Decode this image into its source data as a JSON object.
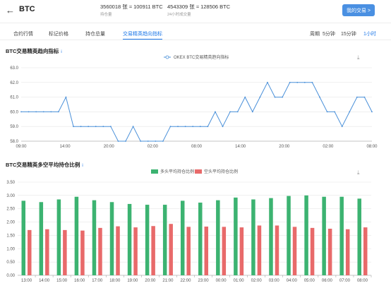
{
  "header": {
    "back_glyph": "←",
    "coin": "BTC",
    "stat1_value": "3560018 张 ≈ 100911 BTC",
    "stat1_label": "持仓量",
    "stat2_value": "4543309 张 ≈ 128506 BTC",
    "stat2_label": "24小时成交量",
    "trade_button": "我的交易 >"
  },
  "tabs": [
    {
      "label": "合约行情",
      "active": false
    },
    {
      "label": "标记价格",
      "active": false
    },
    {
      "label": "持仓总量",
      "active": false
    },
    {
      "label": "交易精英趋向指标",
      "active": true
    }
  ],
  "timeframes": {
    "label": "周期",
    "options": [
      {
        "label": "5分钟",
        "active": false
      },
      {
        "label": "15分钟",
        "active": false
      },
      {
        "label": "1小时",
        "active": true
      }
    ]
  },
  "sections": {
    "line_title": "BTC交易精英趋向指标",
    "bar_title": "BTC交易精英多空平均持仓比例",
    "info_glyph": "i",
    "download_glyph": "⤓"
  },
  "chart_data": [
    {
      "type": "line",
      "series": [
        {
          "name": "OKEX BTC交易精英趋向指标",
          "color": "#4a90d9",
          "values": [
            60,
            60,
            60,
            60,
            60,
            60,
            61,
            59,
            59,
            59,
            59,
            59,
            59,
            58,
            58,
            59,
            58,
            58,
            58,
            58,
            59,
            59,
            59,
            59,
            59,
            59,
            60,
            59,
            60,
            60,
            61,
            60,
            61,
            62,
            61,
            61,
            62,
            62,
            62,
            62,
            61,
            60,
            60,
            59,
            60,
            61,
            61,
            60
          ]
        }
      ],
      "ylim": [
        58,
        63
      ],
      "yticks": [
        58.0,
        59.0,
        60.0,
        61.0,
        62.0,
        63.0
      ],
      "xtick_labels": [
        "09:00",
        "14:00",
        "20:00",
        "02:00",
        "08:00",
        "14:00",
        "20:00",
        "02:00",
        "08:00"
      ],
      "legend": "top-center",
      "grid": true
    },
    {
      "type": "bar",
      "categories": [
        "13:00",
        "14:00",
        "15:00",
        "16:00",
        "17:00",
        "18:00",
        "19:00",
        "20:00",
        "21:00",
        "22:00",
        "23:00",
        "00:00",
        "01:00",
        "02:00",
        "03:00",
        "04:00",
        "05:00",
        "06:00",
        "07:00",
        "08:00"
      ],
      "series": [
        {
          "name": "多头平均持仓比例",
          "color": "#3cb371",
          "values": [
            2.8,
            2.75,
            2.85,
            2.95,
            2.82,
            2.75,
            2.68,
            2.65,
            2.65,
            2.8,
            2.73,
            2.82,
            2.92,
            2.85,
            2.9,
            2.98,
            3.0,
            2.95,
            2.95,
            2.88
          ]
        },
        {
          "name": "空头平均持仓比例",
          "color": "#e86a6a",
          "values": [
            1.7,
            1.73,
            1.7,
            1.68,
            1.78,
            1.84,
            1.8,
            1.85,
            1.93,
            1.82,
            1.83,
            1.82,
            1.8,
            1.87,
            1.87,
            1.82,
            1.78,
            1.75,
            1.73,
            1.8
          ]
        }
      ],
      "ylim": [
        0,
        3.5
      ],
      "yticks": [
        0.0,
        0.5,
        1.0,
        1.5,
        2.0,
        2.5,
        3.0,
        3.5
      ],
      "legend": "top-center",
      "grid": true
    }
  ]
}
